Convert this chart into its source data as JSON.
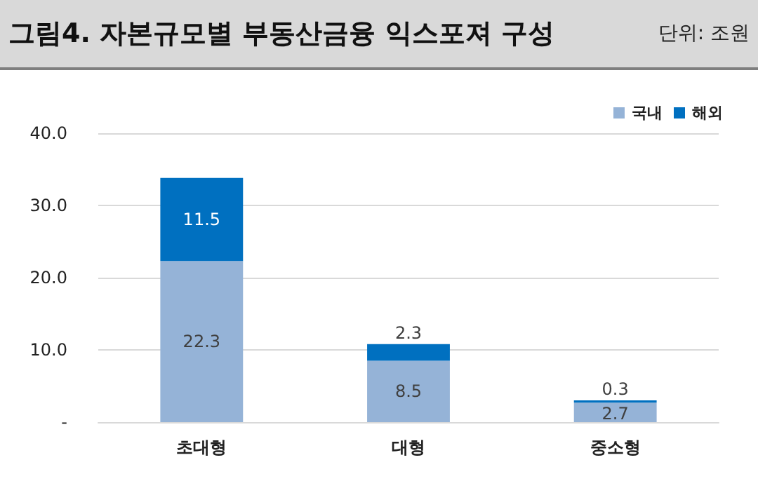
{
  "chart_data": {
    "type": "bar",
    "title": "그림4. 자본규모별 부동산금융 익스포져 구성",
    "annotations": [
      "단위: 조원"
    ],
    "categories": [
      "초대형",
      "대형",
      "중소형"
    ],
    "series": [
      {
        "name": "국내",
        "color": "#95b3d7",
        "values": [
          22.3,
          8.5,
          2.7
        ]
      },
      {
        "name": "해외",
        "color": "#0070c0",
        "values": [
          11.5,
          2.3,
          0.3
        ]
      }
    ],
    "stacked": true,
    "data_labels": true,
    "legend": "top right",
    "grid": "y",
    "ylim": [
      0,
      40
    ],
    "yticks": [
      {
        "value": 0,
        "label": "-"
      },
      {
        "value": 10,
        "label": "10.0"
      },
      {
        "value": 20,
        "label": "20.0"
      },
      {
        "value": 30,
        "label": "30.0"
      },
      {
        "value": 40,
        "label": "40.0"
      }
    ]
  }
}
